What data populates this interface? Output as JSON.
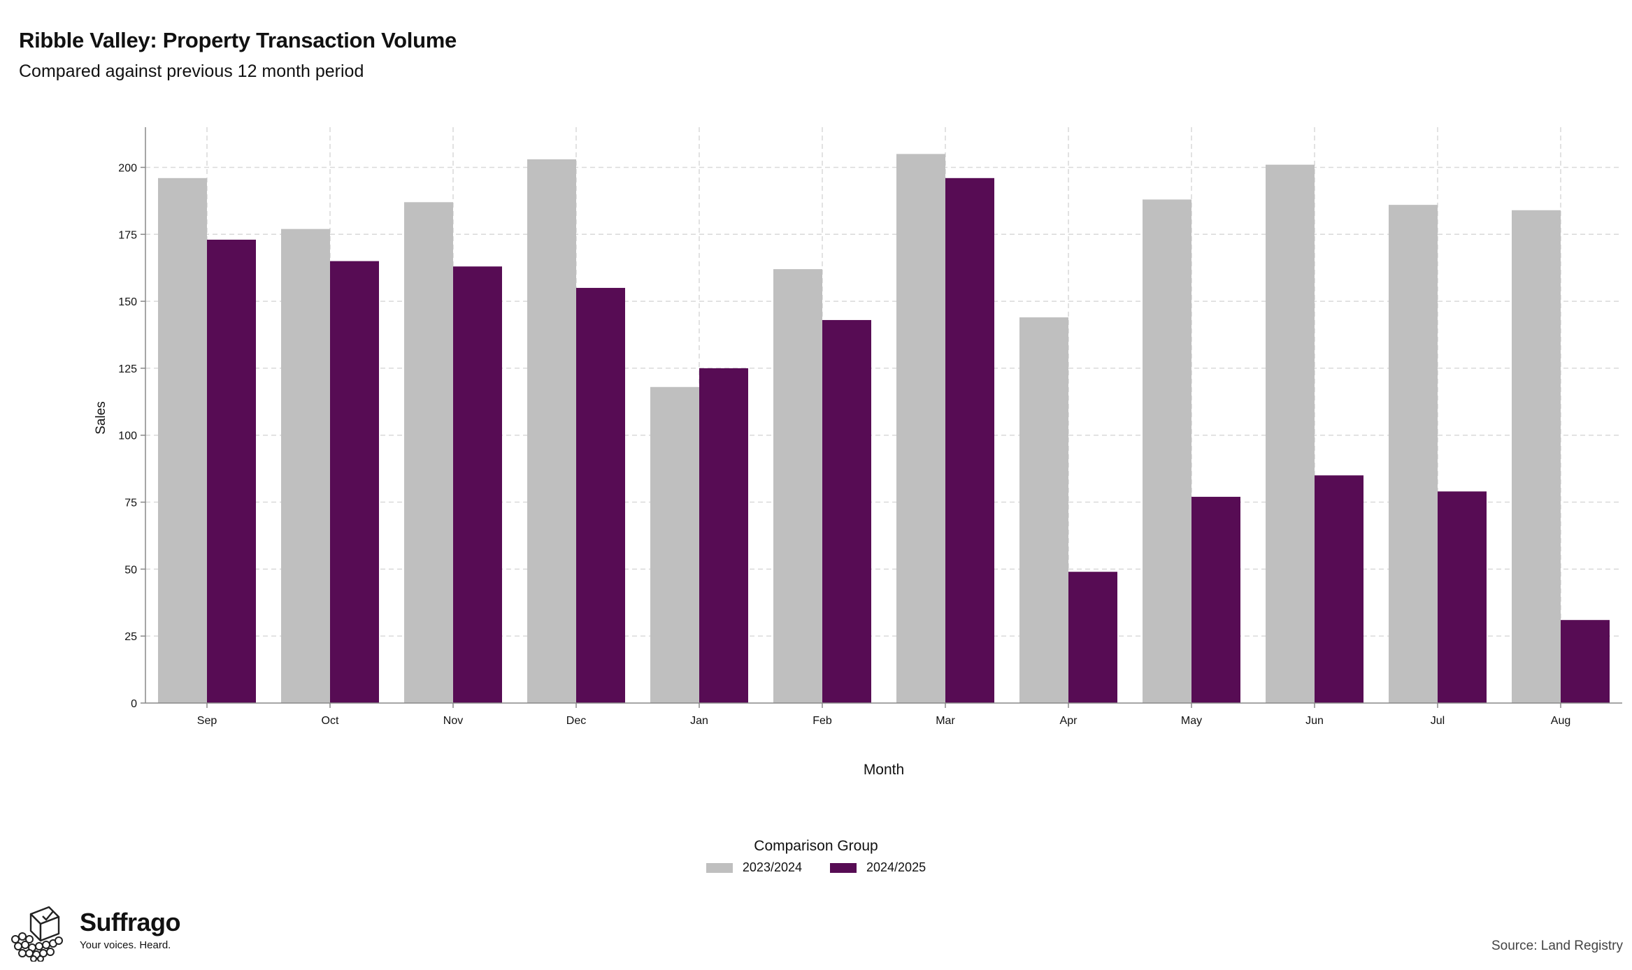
{
  "header": {
    "title": "Ribble Valley: Property Transaction Volume",
    "subtitle": "Compared against previous 12 month period"
  },
  "chart_data": {
    "type": "bar",
    "title": "Ribble Valley: Property Transaction Volume",
    "subtitle": "Compared against previous 12 month period",
    "xlabel": "Month",
    "ylabel": "Sales",
    "categories": [
      "Sep",
      "Oct",
      "Nov",
      "Dec",
      "Jan",
      "Feb",
      "Mar",
      "Apr",
      "May",
      "Jun",
      "Jul",
      "Aug"
    ],
    "series": [
      {
        "name": "2023/2024",
        "color": "#bfbfbf",
        "values": [
          196,
          177,
          187,
          203,
          118,
          162,
          205,
          144,
          188,
          201,
          186,
          184
        ]
      },
      {
        "name": "2024/2025",
        "color": "#570c54",
        "values": [
          173,
          165,
          163,
          155,
          125,
          143,
          196,
          49,
          77,
          85,
          79,
          31
        ]
      }
    ],
    "ylim": [
      0,
      215
    ],
    "yticks": [
      0,
      25,
      50,
      75,
      100,
      125,
      150,
      175,
      200
    ],
    "grid": true,
    "legend_title": "Comparison Group",
    "legend_position": "bottom"
  },
  "legend": {
    "title": "Comparison Group",
    "items": [
      "2023/2024",
      "2024/2025"
    ],
    "colors": [
      "#bfbfbf",
      "#570c54"
    ]
  },
  "brand": {
    "name": "Suffrago",
    "tagline": "Your voices. Heard."
  },
  "source": "Source: Land Registry"
}
